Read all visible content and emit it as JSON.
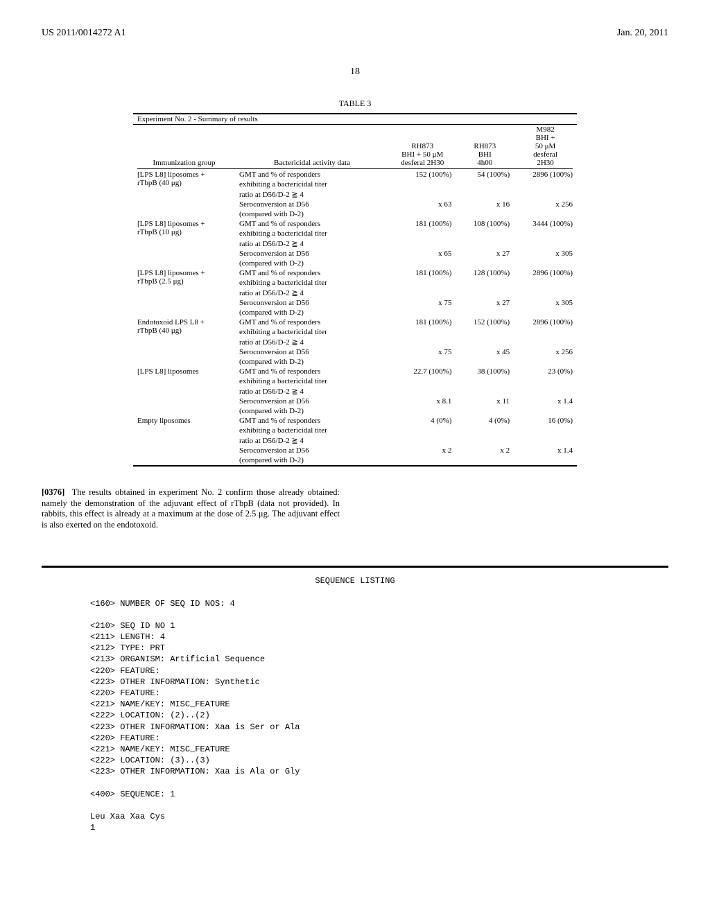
{
  "header": {
    "left": "US 2011/0014272 A1",
    "right": "Jan. 20, 2011"
  },
  "page_number": "18",
  "table": {
    "label": "TABLE 3",
    "caption": "Experiment No. 2 - Summary of results",
    "columns": {
      "c0": "Immunization group",
      "c1": "Bactericidal activity data",
      "c2_l1": "RH873",
      "c2_l2": "BHI + 50 μM",
      "c2_l3": "desferal 2H30",
      "c3_l1": "RH873",
      "c3_l2": "BHI",
      "c3_l3": "4h00",
      "c4_l1": "M982",
      "c4_l2": "BHI +",
      "c4_l3": "50 μM",
      "c4_l4": "desferal",
      "c4_l5": "2H30"
    },
    "rows": [
      {
        "group_l1": "[LPS L8] liposomes +",
        "group_l2": "rTbpB (40 μg)",
        "data_a_l1": "GMT and % of responders",
        "data_a_l2": "exhibiting a bactericidal titer",
        "data_a_l3": "ratio at D56/D-2 ≧ 4",
        "v1a": "152 (100%)",
        "v2a": "54 (100%)",
        "v3a": "2896 (100%)",
        "data_b_l1": "Seroconversion at D56",
        "data_b_l2": "(compared with D-2)",
        "v1b": "x 63",
        "v2b": "x 16",
        "v3b": "x 256"
      },
      {
        "group_l1": "[LPS L8] liposomes +",
        "group_l2": "rTbpB (10 μg)",
        "data_a_l1": "GMT and % of responders",
        "data_a_l2": "exhibiting a bactericidal titer",
        "data_a_l3": "ratio at D56/D-2 ≧ 4",
        "v1a": "181 (100%)",
        "v2a": "108 (100%)",
        "v3a": "3444 (100%)",
        "data_b_l1": "Seroconversion at D56",
        "data_b_l2": "(compared with D-2)",
        "v1b": "x 65",
        "v2b": "x 27",
        "v3b": "x 305"
      },
      {
        "group_l1": "[LPS L8] liposomes +",
        "group_l2": "rTbpB (2.5 μg)",
        "data_a_l1": "GMT and % of responders",
        "data_a_l2": "exhibiting a bactericidal titer",
        "data_a_l3": "ratio at D56/D-2 ≧ 4",
        "v1a": "181 (100%)",
        "v2a": "128 (100%)",
        "v3a": "2896 (100%)",
        "data_b_l1": "Seroconversion at D56",
        "data_b_l2": "(compared with D-2)",
        "v1b": "x 75",
        "v2b": "x 27",
        "v3b": "x 305"
      },
      {
        "group_l1": "Endotoxoid LPS L8 +",
        "group_l2": "rTbpB (40 μg)",
        "data_a_l1": "GMT and % of responders",
        "data_a_l2": "exhibiting a bactericidal titer",
        "data_a_l3": "ratio at D56/D-2 ≧ 4",
        "v1a": "181 (100%)",
        "v2a": "152 (100%)",
        "v3a": "2896 (100%)",
        "data_b_l1": "Seroconversion at D56",
        "data_b_l2": "(compared with D-2)",
        "v1b": "x 75",
        "v2b": "x 45",
        "v3b": "x 256"
      },
      {
        "group_l1": "[LPS L8] liposomes",
        "group_l2": "",
        "data_a_l1": "GMT and % of responders",
        "data_a_l2": "exhibiting a bactericidal titer",
        "data_a_l3": "ratio at D56/D-2 ≧ 4",
        "v1a": "22.7 (100%)",
        "v2a": "38 (100%)",
        "v3a": "23 (0%)",
        "data_b_l1": "Seroconversion at D56",
        "data_b_l2": "(compared with D-2)",
        "v1b": "x 8.1",
        "v2b": "x 11",
        "v3b": "x 1.4"
      },
      {
        "group_l1": "Empty liposomes",
        "group_l2": "",
        "data_a_l1": "GMT and % of responders",
        "data_a_l2": "exhibiting a bactericidal titer",
        "data_a_l3": "ratio at D56/D-2 ≧ 4",
        "v1a": "4 (0%)",
        "v2a": "4 (0%)",
        "v3a": "16 (0%)",
        "data_b_l1": "Seroconversion at D56",
        "data_b_l2": "(compared with D-2)",
        "v1b": "x 2",
        "v2b": "x 2",
        "v3b": "x 1.4"
      }
    ]
  },
  "paragraph": {
    "num": "[0376]",
    "text": "The results obtained in experiment No. 2 confirm those already obtained: namely the demonstration of the adjuvant effect of rTbpB (data not provided). In rabbits, this effect is already at a maximum at the dose of 2.5 μg. The adjuvant effect is also exerted on the endotoxoid."
  },
  "sequence": {
    "title": "SEQUENCE LISTING",
    "lines": [
      "<160> NUMBER OF SEQ ID NOS: 4",
      "",
      "<210> SEQ ID NO 1",
      "<211> LENGTH: 4",
      "<212> TYPE: PRT",
      "<213> ORGANISM: Artificial Sequence",
      "<220> FEATURE:",
      "<223> OTHER INFORMATION: Synthetic",
      "<220> FEATURE:",
      "<221> NAME/KEY: MISC_FEATURE",
      "<222> LOCATION: (2)..(2)",
      "<223> OTHER INFORMATION: Xaa is Ser or Ala",
      "<220> FEATURE:",
      "<221> NAME/KEY: MISC_FEATURE",
      "<222> LOCATION: (3)..(3)",
      "<223> OTHER INFORMATION: Xaa is Ala or Gly",
      "",
      "<400> SEQUENCE: 1",
      "",
      "Leu Xaa Xaa Cys",
      "1"
    ]
  }
}
